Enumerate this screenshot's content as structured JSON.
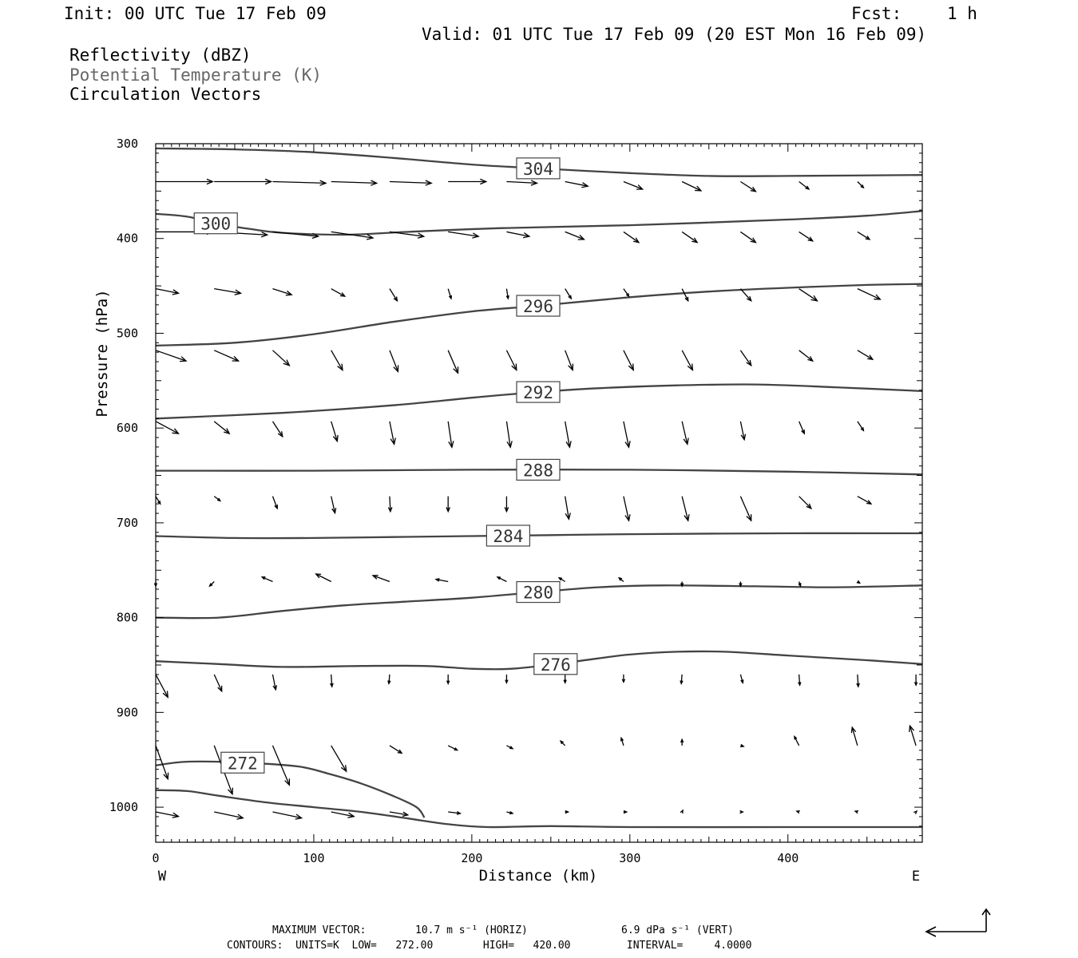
{
  "header": {
    "init": "Init: 00 UTC Tue 17 Feb 09",
    "fcst_label": "Fcst:",
    "fcst_value": "1 h",
    "valid": "Valid: 01 UTC Tue 17 Feb 09 (20 EST Mon 16 Feb 09)",
    "field1": "Reflectivity (dBZ)",
    "field2": "Potential Temperature (K)",
    "field3": "Circulation Vectors"
  },
  "colors": {
    "contour": "#444444",
    "vector": "#000000",
    "field2_text": "#666666"
  },
  "footer": {
    "max_vector_label": "MAXIMUM VECTOR:",
    "max_vector_horiz": "10.7 m s⁻¹ (HORIZ)",
    "max_vector_vert": "6.9 dPa s⁻¹ (VERT)",
    "contours_line": "CONTOURS:  UNITS=K  LOW=   272.00        HIGH=   420.00         INTERVAL=     4.0000"
  },
  "chart_data": {
    "type": "line",
    "title": "Potential Temperature (K)",
    "xlabel": "Distance (km)",
    "ylabel": "Pressure (hPa)",
    "xlim": [
      0,
      485
    ],
    "ylim": [
      1037,
      300
    ],
    "x_ticks": [
      0,
      100,
      200,
      300,
      400
    ],
    "y_ticks": [
      300,
      400,
      500,
      600,
      700,
      800,
      900,
      1000
    ],
    "x_end_labels": {
      "left": "W",
      "right": "E"
    },
    "grid": false,
    "contours": [
      {
        "level": "304",
        "label_x": 242,
        "points": [
          [
            0,
            305
          ],
          [
            50,
            306
          ],
          [
            100,
            309
          ],
          [
            150,
            315
          ],
          [
            200,
            322
          ],
          [
            242,
            326
          ],
          [
            300,
            331
          ],
          [
            350,
            334
          ],
          [
            400,
            334
          ],
          [
            485,
            333
          ]
        ]
      },
      {
        "level": "300",
        "label_x": 38,
        "points": [
          [
            0,
            374
          ],
          [
            20,
            377
          ],
          [
            38,
            384
          ],
          [
            60,
            390
          ],
          [
            80,
            394
          ],
          [
            120,
            396
          ],
          [
            160,
            393
          ],
          [
            220,
            389
          ],
          [
            300,
            386
          ],
          [
            400,
            380
          ],
          [
            450,
            376
          ],
          [
            485,
            371
          ]
        ]
      },
      {
        "level": "296",
        "label_x": 242,
        "points": [
          [
            0,
            513
          ],
          [
            50,
            510
          ],
          [
            100,
            501
          ],
          [
            150,
            488
          ],
          [
            200,
            477
          ],
          [
            242,
            471
          ],
          [
            300,
            462
          ],
          [
            350,
            456
          ],
          [
            400,
            452
          ],
          [
            450,
            449
          ],
          [
            485,
            448
          ]
        ]
      },
      {
        "level": "292",
        "label_x": 242,
        "points": [
          [
            0,
            590
          ],
          [
            80,
            584
          ],
          [
            150,
            576
          ],
          [
            200,
            568
          ],
          [
            242,
            562
          ],
          [
            280,
            558
          ],
          [
            330,
            555
          ],
          [
            380,
            554
          ],
          [
            430,
            557
          ],
          [
            485,
            561
          ]
        ]
      },
      {
        "level": "288",
        "label_x": 242,
        "points": [
          [
            0,
            645
          ],
          [
            100,
            645
          ],
          [
            200,
            644
          ],
          [
            300,
            644
          ],
          [
            400,
            646
          ],
          [
            485,
            649
          ]
        ]
      },
      {
        "level": "284",
        "label_x": 223,
        "points": [
          [
            0,
            714
          ],
          [
            50,
            716
          ],
          [
            100,
            716
          ],
          [
            150,
            715
          ],
          [
            200,
            714
          ],
          [
            250,
            713
          ],
          [
            300,
            712
          ],
          [
            400,
            711
          ],
          [
            485,
            711
          ]
        ]
      },
      {
        "level": "280",
        "label_x": 242,
        "points": [
          [
            0,
            800
          ],
          [
            40,
            800
          ],
          [
            80,
            793
          ],
          [
            120,
            787
          ],
          [
            160,
            783
          ],
          [
            200,
            779
          ],
          [
            242,
            773
          ],
          [
            280,
            768
          ],
          [
            320,
            766
          ],
          [
            380,
            767
          ],
          [
            430,
            768
          ],
          [
            485,
            766
          ]
        ]
      },
      {
        "level": "276",
        "label_x": 253,
        "points": [
          [
            0,
            846
          ],
          [
            40,
            849
          ],
          [
            80,
            852
          ],
          [
            130,
            851
          ],
          [
            170,
            851
          ],
          [
            200,
            854
          ],
          [
            225,
            854
          ],
          [
            253,
            849
          ],
          [
            280,
            843
          ],
          [
            300,
            839
          ],
          [
            330,
            836
          ],
          [
            360,
            836
          ],
          [
            400,
            840
          ],
          [
            450,
            845
          ],
          [
            485,
            849
          ]
        ]
      },
      {
        "level": "272",
        "label_x": 55,
        "points": [
          [
            0,
            956
          ],
          [
            20,
            952
          ],
          [
            55,
            953
          ],
          [
            90,
            957
          ],
          [
            110,
            965
          ],
          [
            130,
            975
          ],
          [
            150,
            988
          ],
          [
            165,
            1000
          ],
          [
            170,
            1011
          ]
        ]
      },
      {
        "level": "",
        "label_x": null,
        "points": [
          [
            0,
            982
          ],
          [
            20,
            983
          ],
          [
            40,
            988
          ],
          [
            70,
            995
          ],
          [
            100,
            1000
          ],
          [
            130,
            1005
          ],
          [
            160,
            1012
          ],
          [
            185,
            1018
          ],
          [
            210,
            1021
          ],
          [
            250,
            1020
          ],
          [
            300,
            1021
          ],
          [
            400,
            1021
          ],
          [
            485,
            1021
          ]
        ]
      }
    ],
    "vector_rows": [
      {
        "p": 340,
        "x": [
          0,
          37,
          74,
          111,
          148,
          185,
          222,
          259,
          296,
          333,
          370,
          407,
          444
        ],
        "u": [
          7.5,
          7.5,
          7,
          6,
          5.5,
          5,
          4,
          3,
          2.5,
          2.5,
          2,
          1.3,
          0.8
        ],
        "w": [
          0,
          0,
          -0.2,
          -0.2,
          -0.2,
          0,
          -0.2,
          -0.6,
          -1,
          -1.2,
          -1.3,
          -1,
          -0.8
        ]
      },
      {
        "p": 393,
        "x": [
          0,
          37,
          74,
          111,
          148,
          185,
          222,
          259,
          296,
          333,
          370,
          407,
          444
        ],
        "u": [
          7.5,
          7,
          6,
          5.5,
          4.5,
          4,
          3,
          2.5,
          2,
          2,
          2,
          1.8,
          1.6
        ],
        "w": [
          0,
          -0.4,
          -0.6,
          -0.8,
          -0.6,
          -0.6,
          -0.6,
          -1,
          -1.4,
          -1.4,
          -1.4,
          -1.2,
          -1
        ]
      },
      {
        "p": 453,
        "x": [
          0,
          37,
          74,
          111,
          148,
          185,
          222,
          259,
          296,
          333,
          370,
          407,
          444
        ],
        "u": [
          3,
          3.5,
          2.5,
          1.8,
          1,
          0.4,
          0.2,
          0.8,
          0.7,
          0.8,
          1.4,
          2.4,
          3
        ],
        "w": [
          -0.6,
          -0.6,
          -0.8,
          -1,
          -1.6,
          -1.3,
          -1.3,
          -1.3,
          -1,
          -1.6,
          -1.6,
          -1.6,
          -1.4
        ]
      },
      {
        "p": 518,
        "x": [
          0,
          37,
          74,
          111,
          148,
          185,
          222,
          259,
          296,
          333,
          370,
          407,
          444
        ],
        "u": [
          4,
          3.2,
          2.2,
          1.5,
          1.1,
          1.3,
          1.3,
          1,
          1.3,
          1.4,
          1.4,
          1.8,
          2
        ],
        "w": [
          -1.4,
          -1.4,
          -2,
          -2.6,
          -2.8,
          -3,
          -2.6,
          -2.6,
          -2.6,
          -2.6,
          -2,
          -1.4,
          -1.2
        ]
      },
      {
        "p": 593,
        "x": [
          0,
          37,
          74,
          111,
          148,
          185,
          222,
          259,
          296,
          333,
          370,
          407,
          444
        ],
        "u": [
          3,
          2,
          1.3,
          0.8,
          0.6,
          0.5,
          0.5,
          0.6,
          0.7,
          0.7,
          0.5,
          0.7,
          0.8
        ],
        "w": [
          -1.6,
          -1.6,
          -2,
          -2.6,
          -3,
          -3.4,
          -3.4,
          -3.4,
          -3.4,
          -3,
          -2.4,
          -1.6,
          -1.2
        ]
      },
      {
        "p": 672,
        "x": [
          0,
          37,
          74,
          111,
          148,
          185,
          222,
          259,
          296,
          333,
          370,
          407,
          444
        ],
        "u": [
          0.6,
          0.8,
          0.6,
          0.5,
          0.1,
          0,
          0,
          0.5,
          0.7,
          0.8,
          1.4,
          1.6,
          1.8
        ],
        "w": [
          -1,
          -0.6,
          -1.6,
          -2.2,
          -2,
          -2,
          -2,
          -3,
          -3.2,
          -3.2,
          -3.2,
          -1.6,
          -1
        ]
      },
      {
        "p": 762,
        "x": [
          0,
          37,
          74,
          111,
          148,
          185,
          222,
          259,
          296,
          333,
          370,
          407,
          444
        ],
        "u": [
          0,
          -0.6,
          -1.4,
          -2,
          -2.2,
          -1.6,
          -1.2,
          -0.8,
          -0.6,
          0,
          0,
          0.2,
          0.3
        ],
        "w": [
          -0.6,
          -0.6,
          0.6,
          1,
          0.8,
          0.3,
          0.6,
          0.5,
          0.5,
          -0.6,
          -0.6,
          -0.6,
          -0.2
        ]
      },
      {
        "p": 860,
        "x": [
          0,
          37,
          74,
          111,
          148,
          185,
          222,
          259,
          296,
          333,
          370,
          407,
          444,
          481
        ],
        "u": [
          1.6,
          1,
          0.4,
          0.1,
          -0.1,
          0,
          0,
          0,
          0,
          -0.1,
          0.3,
          0.1,
          0.1,
          0
        ],
        "w": [
          -3,
          -2.2,
          -2,
          -1.6,
          -1.2,
          -1.2,
          -1.1,
          -1.1,
          -1,
          -1.2,
          -1.1,
          -1.4,
          -1.6,
          -1.4
        ]
      },
      {
        "p": 935,
        "x": [
          0,
          37,
          74,
          111,
          148,
          185,
          222,
          259,
          296,
          333,
          370,
          407,
          444,
          481
        ],
        "u": [
          1.6,
          2.4,
          2.2,
          2,
          1.6,
          1.2,
          0.8,
          -0.6,
          -0.3,
          0,
          0.4,
          -0.6,
          -0.7,
          -0.8
        ],
        "w": [
          -4.4,
          -6.4,
          -5.2,
          -3.4,
          -1,
          -0.6,
          -0.4,
          0.6,
          1,
          0.8,
          -0.1,
          1.2,
          2.4,
          2.6
        ]
      },
      {
        "p": 1005,
        "x": [
          0,
          37,
          74,
          111,
          148,
          185,
          222,
          259,
          296,
          333,
          370,
          407,
          444,
          481
        ],
        "u": [
          3,
          3.8,
          3.8,
          3,
          2.4,
          1.6,
          0.8,
          0.4,
          0.4,
          0.1,
          0.3,
          -0.3,
          -0.3,
          0.1
        ],
        "w": [
          -0.6,
          -0.8,
          -0.8,
          -0.6,
          -0.4,
          -0.2,
          -0.2,
          0,
          0,
          0.2,
          0,
          0.1,
          0.1,
          0.1
        ]
      }
    ],
    "reference_vector": {
      "horiz": 10.7,
      "vert": 6.9
    }
  }
}
